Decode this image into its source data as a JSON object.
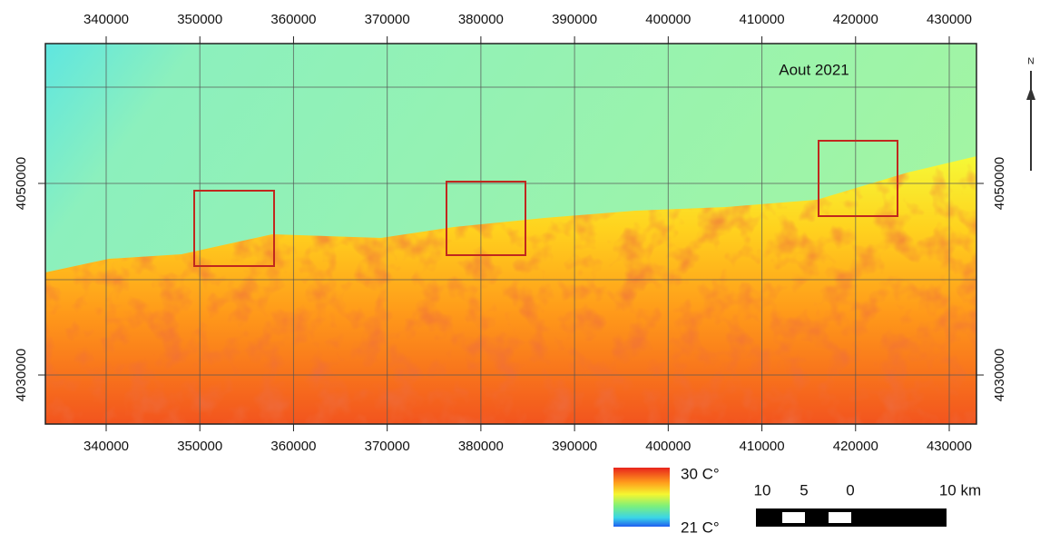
{
  "map": {
    "title": "Aout 2021",
    "north": "N",
    "eastings": [
      340000,
      350000,
      360000,
      370000,
      380000,
      390000,
      400000,
      410000,
      420000,
      430000
    ],
    "northings": [
      4030000,
      4050000
    ],
    "legend": {
      "max": "30 C°",
      "min": "21 C°"
    },
    "scale_bar": {
      "labels": [
        "10",
        "5",
        "0",
        "10 km"
      ]
    }
  }
}
